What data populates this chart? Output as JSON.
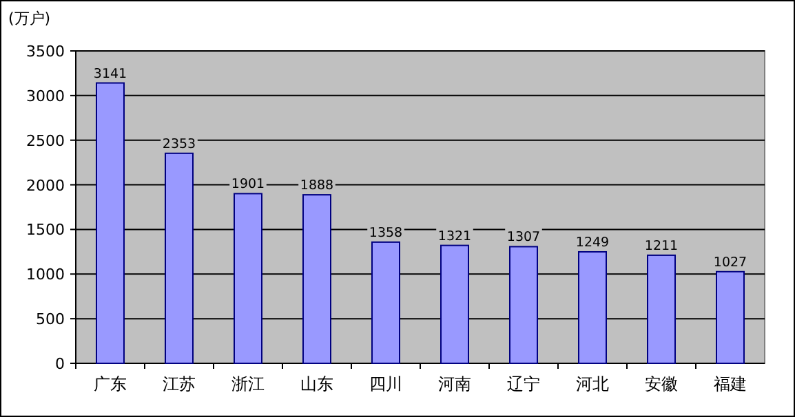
{
  "chart_data": {
    "type": "bar",
    "ylabel": "(万户)",
    "categories": [
      "广东",
      "江苏",
      "浙江",
      "山东",
      "四川",
      "河南",
      "辽宁",
      "河北",
      "安徽",
      "福建"
    ],
    "values": [
      3141,
      2353,
      1901,
      1888,
      1358,
      1321,
      1307,
      1249,
      1211,
      1027
    ],
    "color": "#9999ff",
    "ylim": [
      0,
      3500
    ],
    "yticks": [
      0,
      500,
      1000,
      1500,
      2000,
      2500,
      3000,
      3500
    ],
    "grid": "y",
    "data_labels": true
  }
}
